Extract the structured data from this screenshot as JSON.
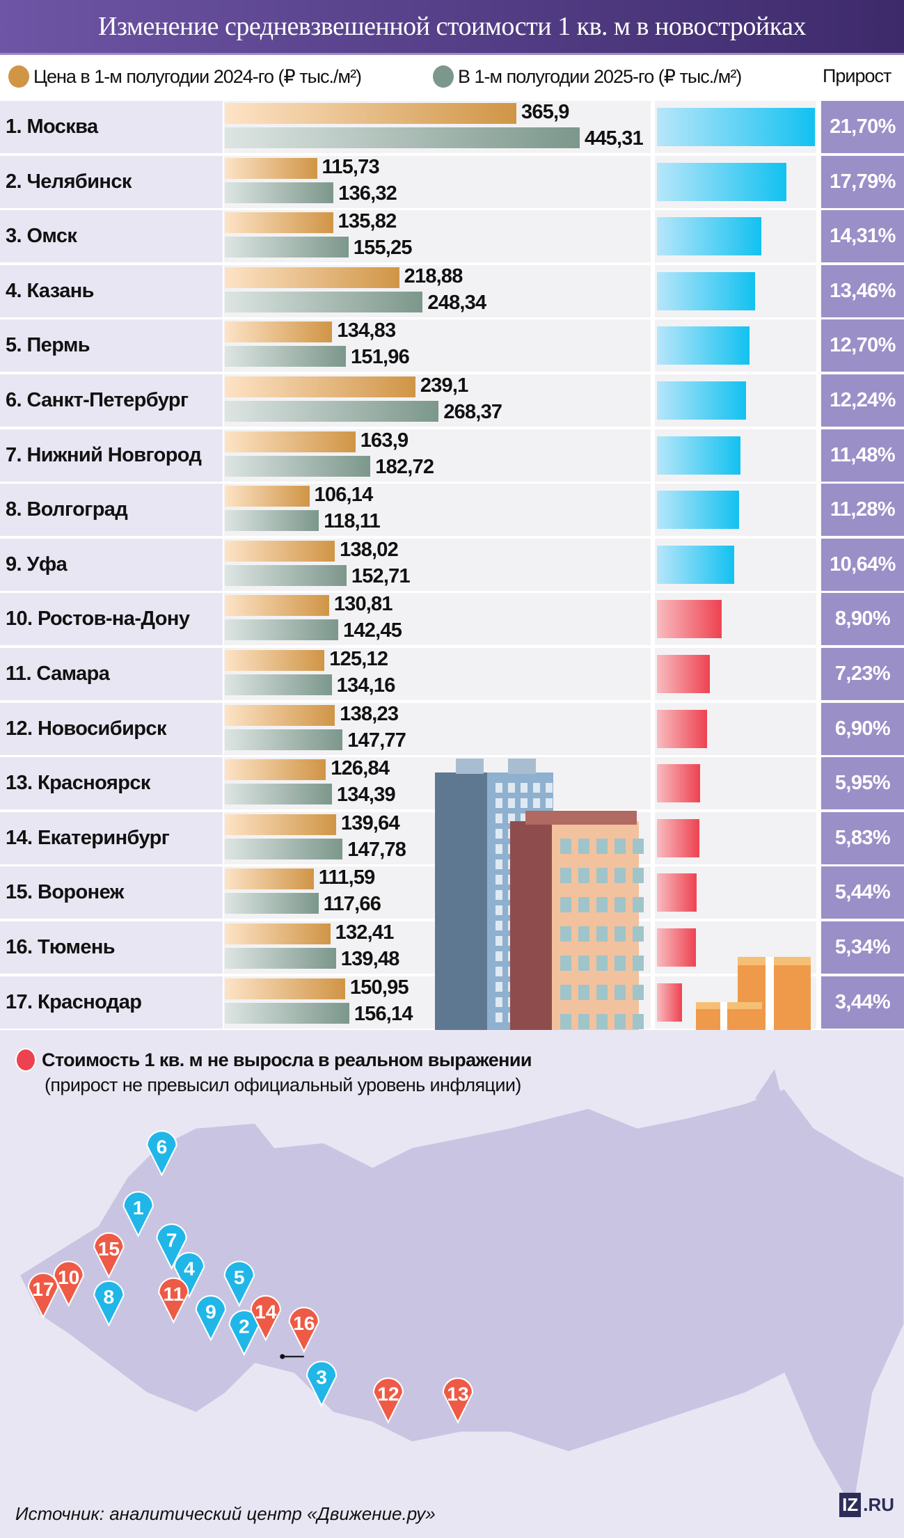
{
  "title": "Изменение средневзвешенной стоимости 1 кв. м в новостройках",
  "legend": {
    "s2024": "Цена в 1-м полугодии 2024-го (₽ тыс./м²)",
    "s2025": "В 1-м полугодии 2025-го (₽ тыс./м²)",
    "growth": "Прирост"
  },
  "colors": {
    "s2024": "#d09546",
    "s2025": "#7c978c",
    "growth_high": "#12c1f0",
    "growth_low": "#ee4250",
    "pct_bg": "#9b8fc8",
    "title_bg": "#5a4490"
  },
  "chart_data": {
    "type": "bar",
    "categories": [
      "1. Москва",
      "2. Челябинск",
      "3. Омск",
      "4. Казань",
      "5. Пермь",
      "6. Санкт-Петербург",
      "7. Нижний Новгород",
      "8. Волгоград",
      "9. Уфа",
      "10. Ростов-на-Дону",
      "11. Самара",
      "12. Новосибирск",
      "13. Красноярск",
      "14. Екатеринбург",
      "15. Воронеж",
      "16. Тюмень",
      "17. Краснодар"
    ],
    "series": [
      {
        "name": "Цена в 1-м полугодии 2024-го (₽ тыс./м²)",
        "values": [
          365.9,
          115.73,
          135.82,
          218.88,
          134.83,
          239.1,
          163.9,
          106.14,
          138.02,
          130.81,
          125.12,
          138.23,
          126.84,
          139.64,
          111.59,
          132.41,
          150.95
        ],
        "labels": [
          "365,9",
          "115,73",
          "135,82",
          "218,88",
          "134,83",
          "239,1",
          "163,9",
          "106,14",
          "138,02",
          "130,81",
          "125,12",
          "138,23",
          "126,84",
          "139,64",
          "111,59",
          "132,41",
          "150,95"
        ]
      },
      {
        "name": "В 1-м полугодии 2025-го (₽ тыс./м²)",
        "values": [
          445.31,
          136.32,
          155.25,
          248.34,
          151.96,
          268.37,
          182.72,
          118.11,
          152.71,
          142.45,
          134.16,
          147.77,
          134.39,
          147.78,
          117.66,
          139.48,
          156.14
        ],
        "labels": [
          "445,31",
          "136,32",
          "155,25",
          "248,34",
          "151,96",
          "268,37",
          "182,72",
          "118,11",
          "152,71",
          "142,45",
          "134,16",
          "147,77",
          "134,39",
          "147,78",
          "117,66",
          "139,48",
          "156,14"
        ]
      },
      {
        "name": "Прирост",
        "values": [
          21.7,
          17.79,
          14.31,
          13.46,
          12.7,
          12.24,
          11.48,
          11.28,
          10.64,
          8.9,
          7.23,
          6.9,
          5.95,
          5.83,
          5.44,
          5.34,
          3.44
        ],
        "labels": [
          "21,70%",
          "17,79%",
          "14,31%",
          "13,46%",
          "12,70%",
          "12,24%",
          "11,48%",
          "11,28%",
          "10,64%",
          "8,90%",
          "7,23%",
          "6,90%",
          "5,95%",
          "5,83%",
          "5,44%",
          "5,34%",
          "3,44%"
        ]
      }
    ],
    "below_inflation": [
      false,
      false,
      false,
      false,
      false,
      false,
      false,
      false,
      false,
      true,
      true,
      true,
      true,
      true,
      true,
      true,
      true
    ],
    "xlim": [
      0,
      445.31
    ]
  },
  "map": {
    "note_title": "Стоимость 1 кв. м не выросла в реальном выражении",
    "note_sub": "(прирост не превысил официальный уровень инфляции)",
    "pins": [
      {
        "n": "1",
        "red": false
      },
      {
        "n": "2",
        "red": false
      },
      {
        "n": "3",
        "red": false
      },
      {
        "n": "4",
        "red": false
      },
      {
        "n": "5",
        "red": false
      },
      {
        "n": "6",
        "red": false
      },
      {
        "n": "7",
        "red": false
      },
      {
        "n": "8",
        "red": false
      },
      {
        "n": "9",
        "red": false
      },
      {
        "n": "10",
        "red": true
      },
      {
        "n": "11",
        "red": true
      },
      {
        "n": "12",
        "red": true
      },
      {
        "n": "13",
        "red": true
      },
      {
        "n": "14",
        "red": true
      },
      {
        "n": "15",
        "red": true
      },
      {
        "n": "16",
        "red": true
      },
      {
        "n": "17",
        "red": true
      }
    ]
  },
  "source": "Источник: аналитический центр «Движение.ру»",
  "logo": {
    "a": "IZ",
    "b": ".RU"
  }
}
